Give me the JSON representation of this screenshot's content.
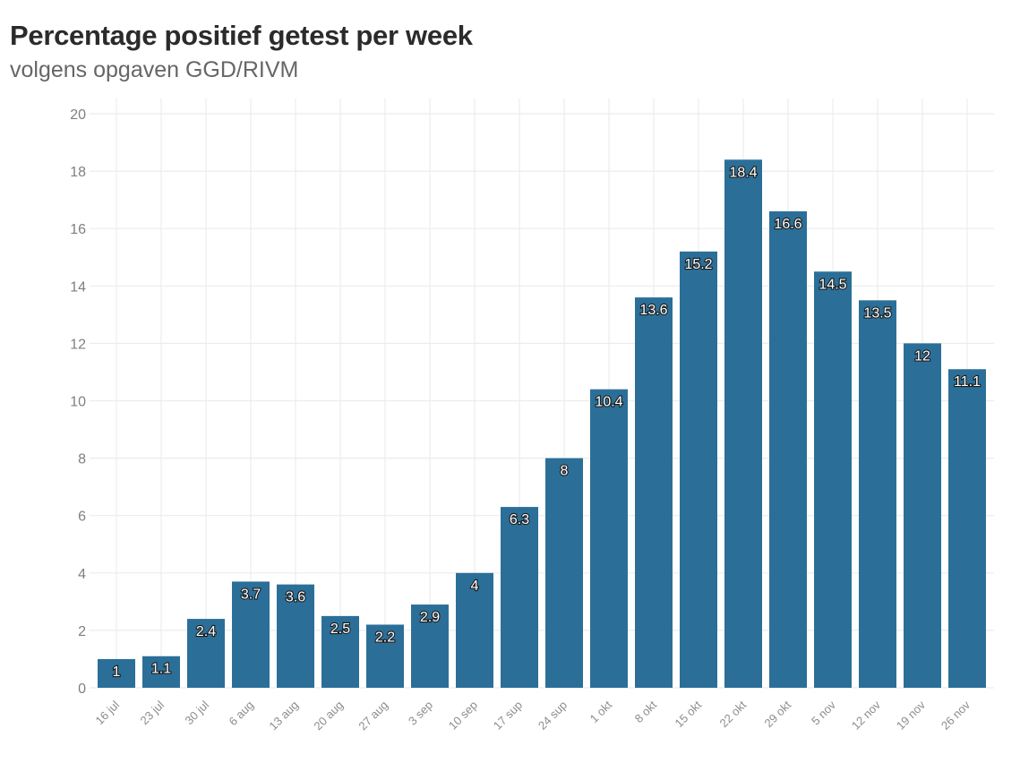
{
  "chart_data": {
    "type": "bar",
    "title": "Percentage positief getest per week",
    "subtitle": "volgens opgaven GGD/RIVM",
    "xlabel": "",
    "ylabel": "",
    "categories": [
      "16 jul",
      "23 jul",
      "30 jul",
      "6 aug",
      "13 aug",
      "20 aug",
      "27 aug",
      "3 sep",
      "10 sep",
      "17 sup",
      "24 sup",
      "1 okt",
      "8 okt",
      "15 okt",
      "22 okt",
      "29 okt",
      "5 nov",
      "12 nov",
      "19 nov",
      "26 nov"
    ],
    "values": [
      1,
      1.1,
      2.4,
      3.7,
      3.6,
      2.5,
      2.2,
      2.9,
      4,
      6.3,
      8,
      10.4,
      13.6,
      15.2,
      18.4,
      16.6,
      14.5,
      13.5,
      12,
      11.1
    ],
    "value_labels": [
      "1",
      "1.1",
      "2.4",
      "3.7",
      "3.6",
      "2.5",
      "2.2",
      "2.9",
      "4",
      "6.3",
      "8",
      "10.4",
      "13.6",
      "15.2",
      "18.4",
      "16.6",
      "14.5",
      "13.5",
      "12",
      "11.1"
    ],
    "ylim": [
      0,
      20
    ],
    "yticks": [
      0,
      2,
      4,
      6,
      8,
      10,
      12,
      14,
      16,
      18,
      20
    ],
    "grid": true,
    "colors": {
      "bar": "#2b6f98",
      "grid": "#ececec",
      "label_fill": "#ffffff",
      "label_stroke": "#1a1a1a"
    }
  }
}
